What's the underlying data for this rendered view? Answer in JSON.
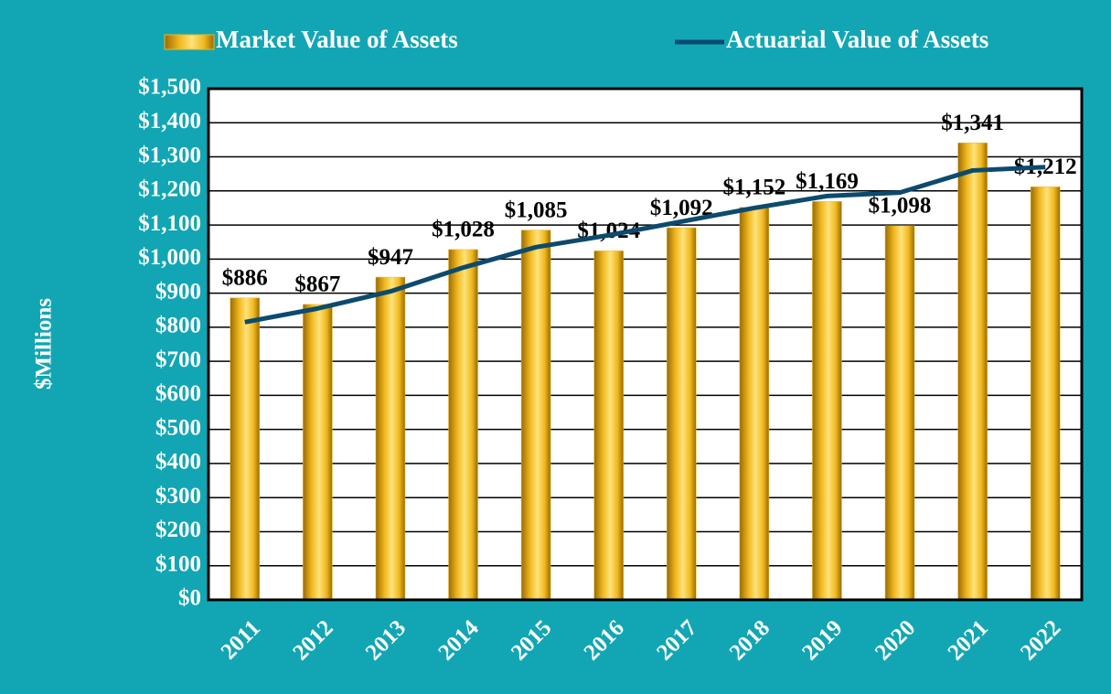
{
  "chart_data": {
    "type": "bar",
    "ylabel": "$Millions",
    "categories": [
      "2011",
      "2012",
      "2013",
      "2014",
      "2015",
      "2016",
      "2017",
      "2018",
      "2019",
      "2020",
      "2021",
      "2022"
    ],
    "series": [
      {
        "name": "Market Value of Assets",
        "type": "bar",
        "color": "#f0b81e",
        "values": [
          886,
          867,
          947,
          1028,
          1085,
          1024,
          1092,
          1152,
          1169,
          1098,
          1341,
          1212
        ],
        "value_labels": [
          "$886",
          "$867",
          "$947",
          "$1,028",
          "$1,085",
          "$1,024",
          "$1,092",
          "$1,152",
          "$1,169",
          "$1,098",
          "$1,341",
          "$1,212"
        ]
      },
      {
        "name": "Actuarial Value of Assets",
        "type": "line",
        "color": "#0c4a6e",
        "values": [
          815,
          855,
          905,
          975,
          1035,
          1070,
          1110,
          1150,
          1185,
          1195,
          1260,
          1270
        ]
      }
    ],
    "ylim": [
      0,
      1500
    ],
    "yticks": [
      {
        "value": 0,
        "label": "$0"
      },
      {
        "value": 100,
        "label": "$100"
      },
      {
        "value": 200,
        "label": "$200"
      },
      {
        "value": 300,
        "label": "$300"
      },
      {
        "value": 400,
        "label": "$400"
      },
      {
        "value": 500,
        "label": "$500"
      },
      {
        "value": 600,
        "label": "$600"
      },
      {
        "value": 700,
        "label": "$700"
      },
      {
        "value": 800,
        "label": "$800"
      },
      {
        "value": 900,
        "label": "$900"
      },
      {
        "value": 1000,
        "label": "$1,000"
      },
      {
        "value": 1100,
        "label": "$1,100"
      },
      {
        "value": 1200,
        "label": "$1,200"
      },
      {
        "value": 1300,
        "label": "$1,300"
      },
      {
        "value": 1400,
        "label": "$1,400"
      },
      {
        "value": 1500,
        "label": "$1,500"
      }
    ],
    "grid": true,
    "legend": "top"
  }
}
